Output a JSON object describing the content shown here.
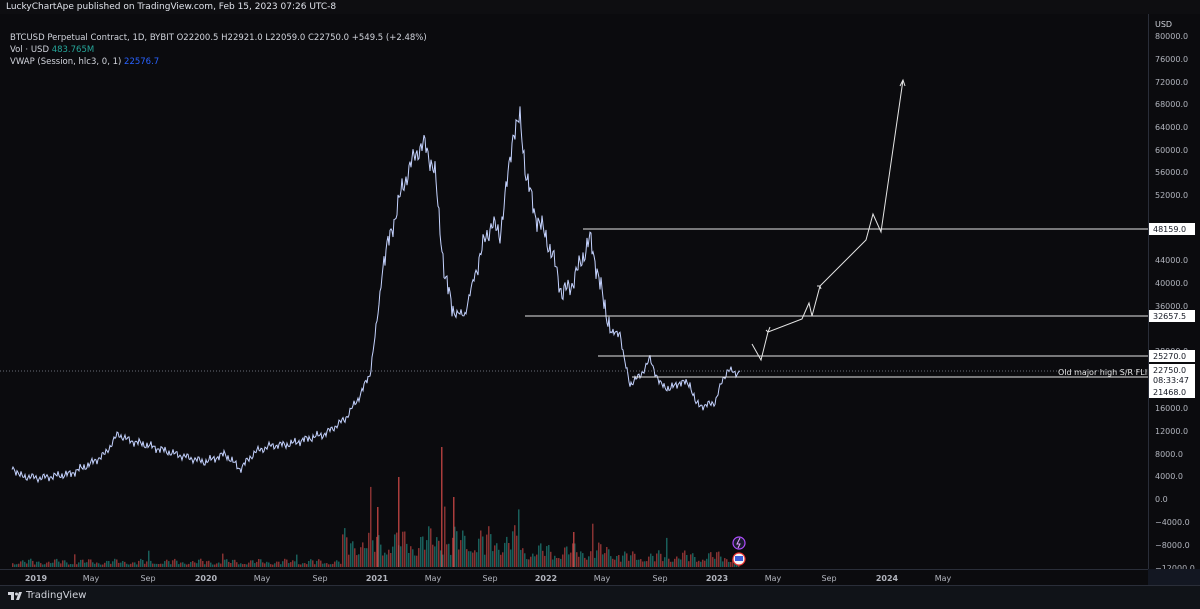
{
  "header": {
    "published": "LuckyChartApe published on TradingView.com, Feb 15, 2023 07:26 UTC-8"
  },
  "legend": {
    "symbol_line": "BTCUSD Perpetual Contract, 1D, BYBIT  O22200.5  H22921.0  L22059.0  C22750.0  +549.5 (+2.48%)",
    "vol_label": "Vol · USD",
    "vol_value": "483.765M",
    "vwap_label": "VWAP (Session, hlc3, 0, 1)",
    "vwap_value": "22576.7"
  },
  "price_scale": {
    "currency": "USD",
    "ticks": [
      "80000.0",
      "76000.0",
      "72000.0",
      "68000.0",
      "64000.0",
      "60000.0",
      "56000.0",
      "52000.0",
      "44000.0",
      "40000.0",
      "36000.0",
      "28000.0",
      "16000.0",
      "12000.0",
      "8000.0",
      "4000.0",
      "0.0",
      "−4000.0",
      "−8000.0",
      "−12000.0"
    ],
    "labels": {
      "level_48159": "48159.0",
      "level_32657": "32657.5",
      "level_25270": "25270.0",
      "last_price": "22750.0",
      "countdown": "08:33:47",
      "level_21468": "21468.0"
    }
  },
  "annotations": {
    "flip_text": "Old major high S/R FLIP"
  },
  "time_scale": {
    "ticks": [
      "2019",
      "May",
      "Sep",
      "2020",
      "May",
      "Sep",
      "2021",
      "May",
      "Sep",
      "2022",
      "May",
      "Sep",
      "2023",
      "May",
      "Sep",
      "2024",
      "May"
    ]
  },
  "footer": {
    "brand": "TradingView"
  },
  "colors": {
    "background": "#0b0b0e",
    "price_line": "#c5d3ff",
    "volume_up": "#26a69a",
    "volume_down": "#ef5350",
    "vwap": "#2962ff"
  }
}
